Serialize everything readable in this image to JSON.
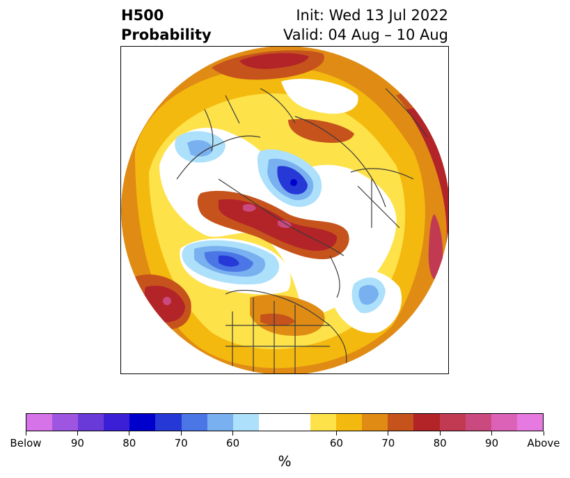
{
  "title": {
    "left_line1": "H500",
    "left_line2": "Probability",
    "right_line1": "Init: Wed 13 Jul 2022",
    "right_line2": "Valid: 04 Aug – 10 Aug"
  },
  "colorbar": {
    "colors": [
      "#d673e8",
      "#9e55e0",
      "#6a3ad8",
      "#3a1fd6",
      "#0000cc",
      "#2638d6",
      "#4a76e6",
      "#78b0f0",
      "#ade0fb",
      "#ffffff",
      "#ffffff",
      "#fde24a",
      "#f4b90e",
      "#e08c14",
      "#c6531c",
      "#b22428",
      "#c23a52",
      "#ca4a80",
      "#dc62b8",
      "#e67ae0"
    ],
    "labels": [
      "Below",
      "90",
      "80",
      "70",
      "60",
      "60",
      "70",
      "80",
      "90",
      "Above"
    ],
    "units": "%"
  },
  "map": {
    "style": "north-polar-stereographic",
    "below_colors": {
      "c60": "#ade0fb",
      "c70": "#78b0f0",
      "c80": "#4a76e6",
      "c90": "#0000cc"
    },
    "above_colors": {
      "c50": "#fde24a",
      "c55": "#f4b90e",
      "c60": "#e08c14",
      "c70": "#c6531c",
      "c80": "#b22428",
      "c90": "#c23a52",
      "c95": "#ca4a80"
    }
  }
}
